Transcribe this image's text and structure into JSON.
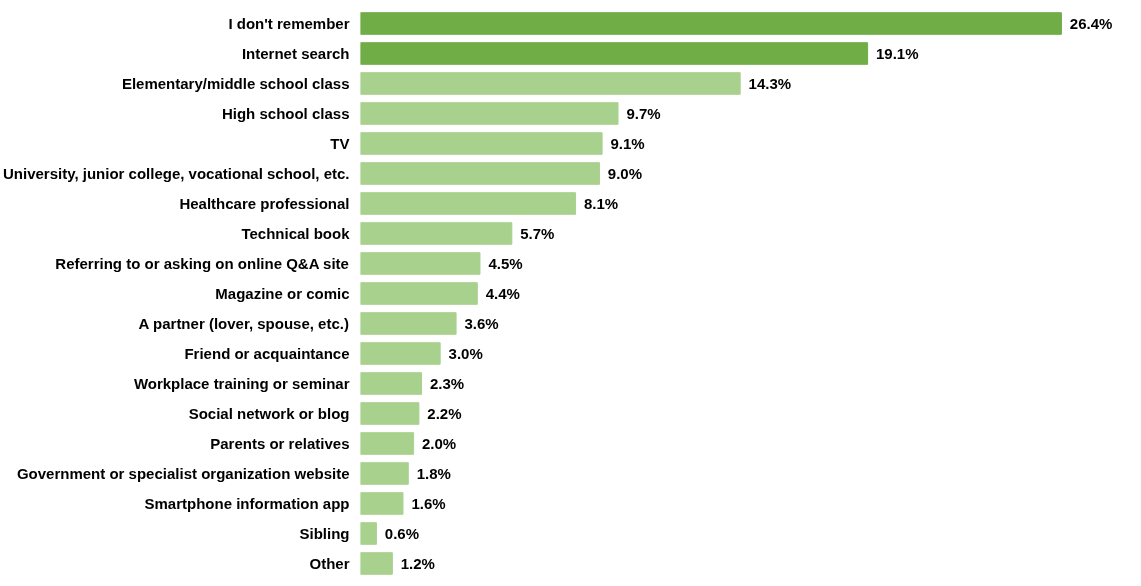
{
  "chart_data": {
    "type": "bar",
    "orientation": "horizontal",
    "categories": [
      "I don't remember",
      "Internet search",
      "Elementary/middle school class",
      "High school class",
      "TV",
      "University, junior college, vocational school, etc.",
      "Healthcare professional",
      "Technical book",
      "Referring to or asking on online Q&A site",
      "Magazine or comic",
      "A partner (lover, spouse, etc.)",
      "Friend or acquaintance",
      "Workplace training or seminar",
      "Social network or blog",
      "Parents or relatives",
      "Government or specialist organization website",
      "Smartphone information app",
      "Sibling",
      "Other"
    ],
    "values": [
      26.4,
      19.1,
      14.3,
      9.7,
      9.1,
      9.0,
      8.1,
      5.7,
      4.5,
      4.4,
      3.6,
      3.0,
      2.3,
      2.2,
      2.0,
      1.8,
      1.6,
      0.6,
      1.2
    ],
    "value_labels": [
      "26.4%",
      "19.1%",
      "14.3%",
      "9.7%",
      "9.1%",
      "9.0%",
      "8.1%",
      "5.7%",
      "4.5%",
      "4.4%",
      "3.6%",
      "3.0%",
      "2.3%",
      "2.2%",
      "2.0%",
      "1.8%",
      "1.6%",
      "0.6%",
      "1.2%"
    ],
    "colors": [
      "#70ad47",
      "#70ad47",
      "#a9d18e",
      "#a9d18e",
      "#a9d18e",
      "#a9d18e",
      "#a9d18e",
      "#a9d18e",
      "#a9d18e",
      "#a9d18e",
      "#a9d18e",
      "#a9d18e",
      "#a9d18e",
      "#a9d18e",
      "#a9d18e",
      "#a9d18e",
      "#a9d18e",
      "#a9d18e",
      "#a9d18e"
    ],
    "tick_labels": "y",
    "grid": false
  }
}
